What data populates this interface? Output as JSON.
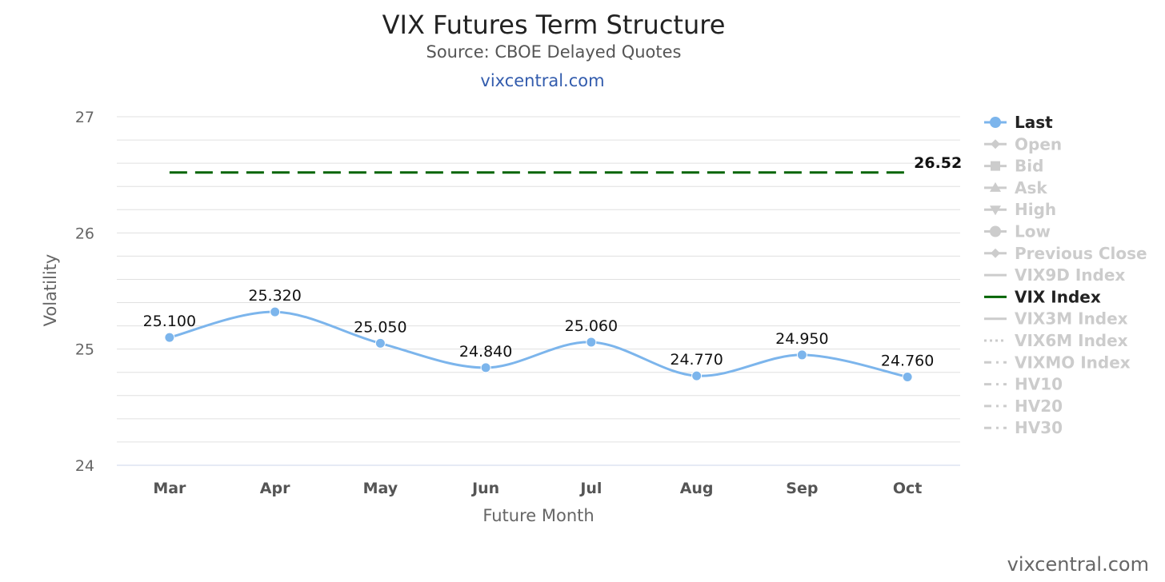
{
  "chart_data": {
    "type": "line",
    "title": "VIX Futures Term Structure",
    "subtitle": "Source: CBOE Delayed Quotes",
    "site_link": "vixcentral.com",
    "credit": "vixcentral.com",
    "xlabel": "Future Month",
    "ylabel": "Volatility",
    "categories": [
      "Mar",
      "Apr",
      "May",
      "Jun",
      "Jul",
      "Aug",
      "Sep",
      "Oct"
    ],
    "ylim": [
      24,
      27
    ],
    "yticks": [
      24,
      25,
      26,
      27
    ],
    "grid": true,
    "legend_position": "right",
    "series": [
      {
        "name": "Last",
        "values": [
          25.1,
          25.32,
          25.05,
          24.84,
          25.06,
          24.77,
          24.95,
          24.76
        ],
        "data_labels": [
          "25.100",
          "25.320",
          "25.050",
          "24.840",
          "25.060",
          "24.770",
          "24.950",
          "24.760"
        ],
        "color": "#7cb5ec",
        "style": "spline-markers"
      },
      {
        "name": "VIX Index",
        "value": 26.52,
        "end_label": "26.52",
        "color": "#006400",
        "style": "dashed"
      }
    ],
    "legend": [
      {
        "name": "Last",
        "active": true,
        "symbol": "circle"
      },
      {
        "name": "Open",
        "active": false,
        "symbol": "diamond"
      },
      {
        "name": "Bid",
        "active": false,
        "symbol": "square"
      },
      {
        "name": "Ask",
        "active": false,
        "symbol": "triangle"
      },
      {
        "name": "High",
        "active": false,
        "symbol": "triangle-down"
      },
      {
        "name": "Low",
        "active": false,
        "symbol": "circle"
      },
      {
        "name": "Previous Close",
        "active": false,
        "symbol": "diamond"
      },
      {
        "name": "VIX9D Index",
        "active": false,
        "symbol": "line"
      },
      {
        "name": "VIX Index",
        "active": true,
        "symbol": "line"
      },
      {
        "name": "VIX3M Index",
        "active": false,
        "symbol": "line"
      },
      {
        "name": "VIX6M Index",
        "active": false,
        "symbol": "dotted"
      },
      {
        "name": "VIXMO Index",
        "active": false,
        "symbol": "dashdot"
      },
      {
        "name": "HV10",
        "active": false,
        "symbol": "dashdot"
      },
      {
        "name": "HV20",
        "active": false,
        "symbol": "dashdot"
      },
      {
        "name": "HV30",
        "active": false,
        "symbol": "dashdot"
      }
    ],
    "colors": {
      "active_legend_text": "#222222",
      "inactive_legend": "#cccccc",
      "grid": "#e0e0e0",
      "axis": "#ccd6eb"
    }
  }
}
